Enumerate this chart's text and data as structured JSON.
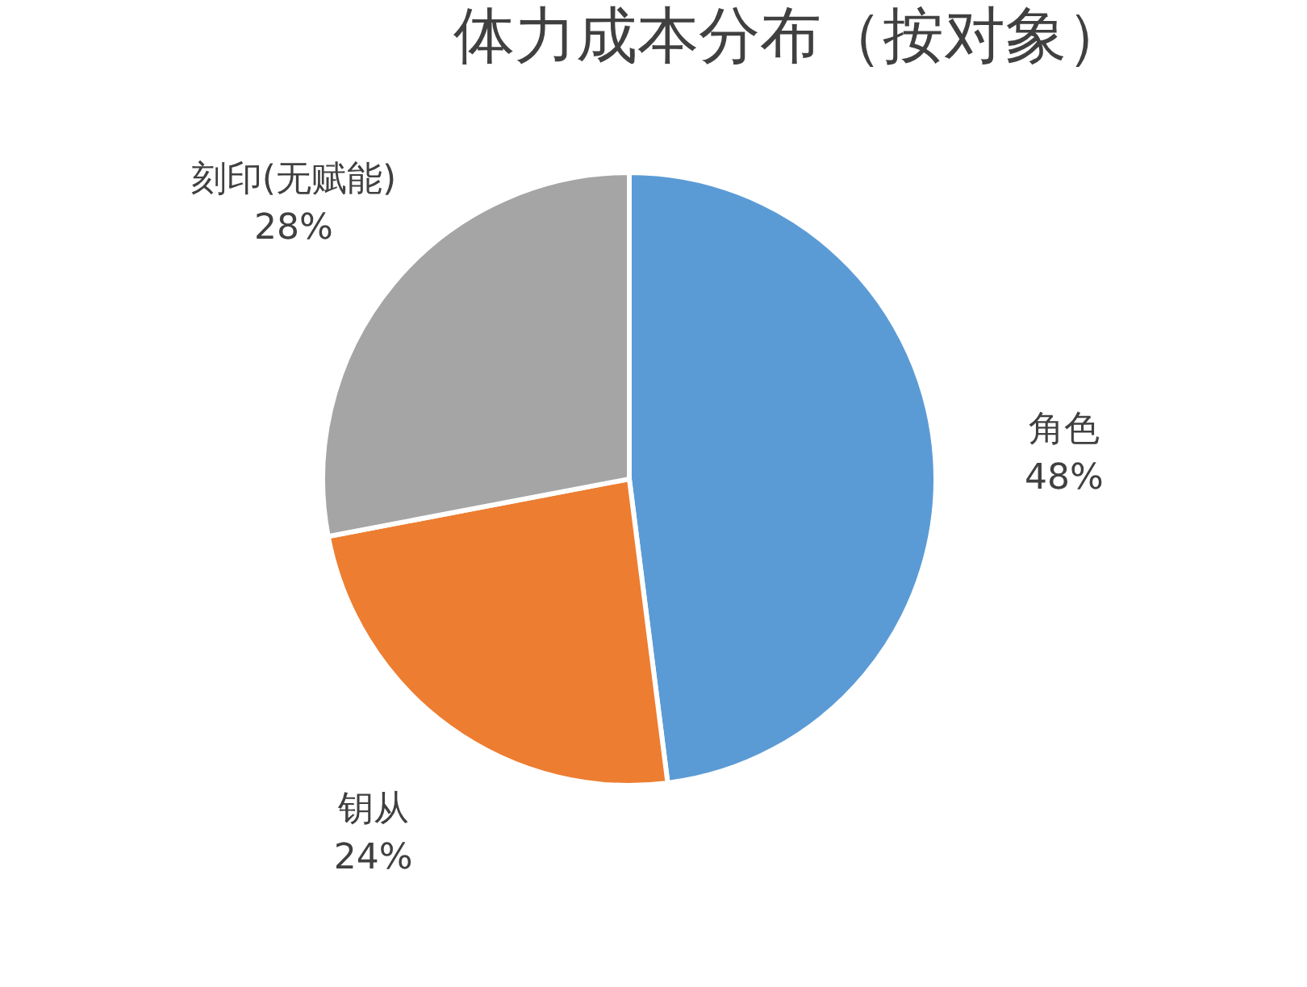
{
  "chart_data": {
    "type": "pie",
    "title": "体力成本分布（按对象）",
    "categories": [
      "角色",
      "钥从",
      "刻印(无赋能)"
    ],
    "values": [
      48,
      24,
      28
    ],
    "colors": [
      "#5b9bd5",
      "#ed7d31",
      "#a5a5a5"
    ],
    "value_labels": [
      "48%",
      "24%",
      "28%"
    ],
    "legend": false
  }
}
